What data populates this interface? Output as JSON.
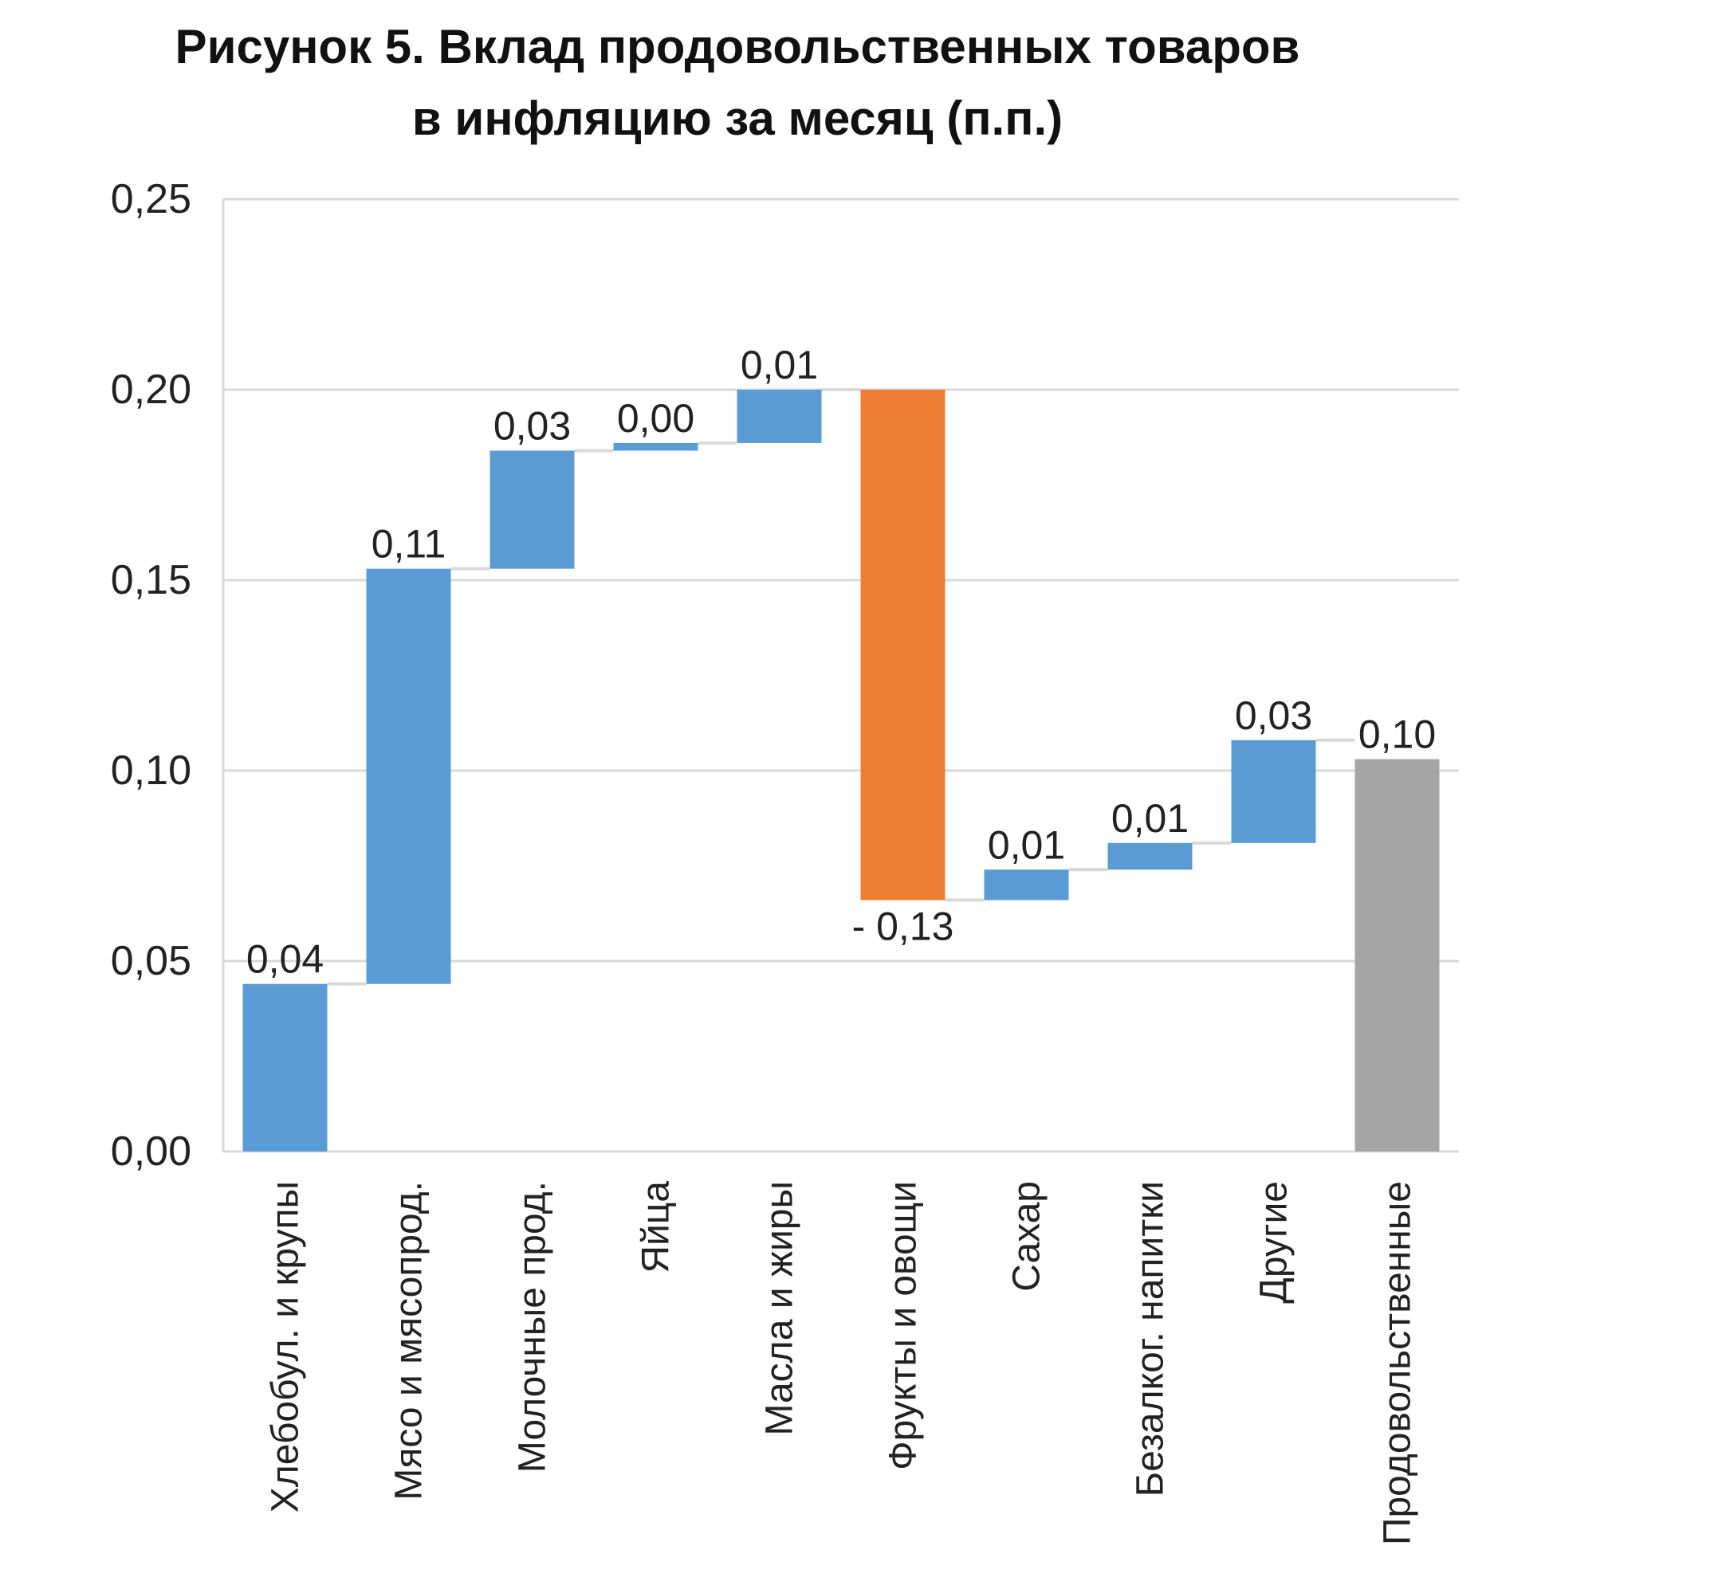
{
  "chart_data": {
    "type": "waterfall",
    "title_lines": [
      "Рисунок 5. Вклад продовольственных товаров",
      "в инфляцию за месяц (п.п.)"
    ],
    "xlabel": "",
    "ylabel": "",
    "ylim": [
      0,
      0.25
    ],
    "yticks": [
      0,
      0.05,
      0.1,
      0.15,
      0.2,
      0.25
    ],
    "ytick_labels": [
      "0,00",
      "0,05",
      "0,10",
      "0,15",
      "0,20",
      "0,25"
    ],
    "grid": true,
    "legend": "none",
    "categories": [
      "Хлебобул. и крупы",
      "Мясо и мясопрод.",
      "Молочные прод.",
      "Яйца",
      "Масла и жиры",
      "Фрукты и овощи",
      "Сахар",
      "Безалког. напитки",
      "Другие",
      "Продовольственные"
    ],
    "values": [
      0.044,
      0.109,
      0.031,
      0.002,
      0.014,
      -0.134,
      0.008,
      0.007,
      0.027,
      0.103
    ],
    "bar_roles": [
      "increase",
      "increase",
      "increase",
      "increase",
      "increase",
      "decrease",
      "increase",
      "increase",
      "increase",
      "total"
    ],
    "value_labels": [
      "0,04",
      "0,11",
      "0,03",
      "0,00",
      "0,01",
      "- 0,13",
      "0,01",
      "0,01",
      "0,03",
      "0,10"
    ],
    "colors": {
      "increase": "#5b9bd5",
      "decrease": "#ed7d31",
      "total": "#a5a5a5",
      "grid": "#d9d9d9",
      "connector": "#d9d9d9"
    }
  }
}
